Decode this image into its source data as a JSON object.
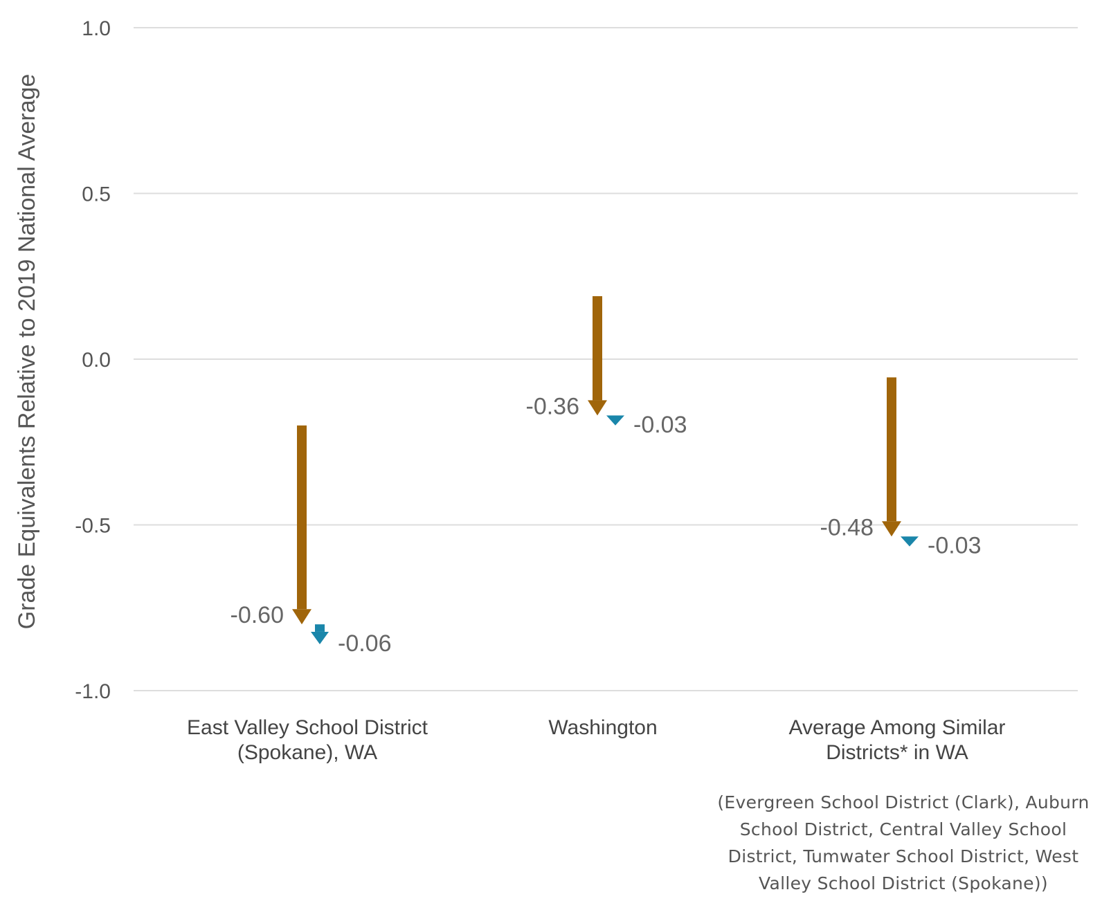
{
  "chart_data": {
    "type": "arrow",
    "ylabel": "Grade Equivalents Relative to 2019 National Average",
    "ylim": [
      -1.0,
      1.0
    ],
    "yticks": [
      1.0,
      0.5,
      0.0,
      -0.5,
      -1.0
    ],
    "ytick_labels": [
      "1.0",
      "0.5",
      "0.0",
      "-0.5",
      "-1.0"
    ],
    "grid": true,
    "categories": [
      [
        "East Valley School District",
        "(Spokane), WA"
      ],
      [
        "Washington"
      ],
      [
        "Average Among Similar",
        "Districts* in WA"
      ]
    ],
    "series": [
      {
        "color": "#a0650a",
        "start": [
          -0.2,
          0.19,
          -0.055
        ],
        "end": [
          -0.8,
          -0.17,
          -0.535
        ],
        "labels": [
          "-0.60",
          "-0.36",
          "-0.48"
        ]
      },
      {
        "color": "#1a86aa",
        "start": [
          -0.8,
          -0.17,
          -0.535
        ],
        "end": [
          -0.86,
          -0.2,
          -0.565
        ],
        "labels": [
          "-0.06",
          "-0.03",
          "-0.03"
        ]
      }
    ],
    "footnote": "(Evergreen School District (Clark), Auburn School District, Central Valley School District, Tumwater School District, West Valley School District (Spokane))"
  }
}
